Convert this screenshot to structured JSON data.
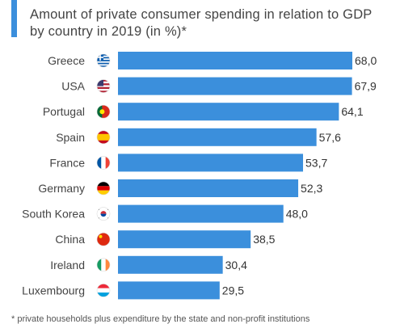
{
  "chart_data": {
    "type": "bar",
    "orientation": "horizontal",
    "title": "",
    "subtitle": "Amount of private consumer spending in relation to GDP by country in 2019 (in %)*",
    "categories": [
      "Greece",
      "USA",
      "Portugal",
      "Spain",
      "France",
      "Germany",
      "South Korea",
      "China",
      "Ireland",
      "Luxembourg"
    ],
    "values": [
      68.0,
      67.9,
      64.1,
      57.6,
      53.7,
      52.3,
      48.0,
      38.5,
      30.4,
      29.5
    ],
    "value_labels": [
      "68,0",
      "67,9",
      "64,1",
      "57,6",
      "53,7",
      "52,3",
      "48,0",
      "38,5",
      "30,4",
      "29,5"
    ],
    "flags": [
      "greece-flag",
      "usa-flag",
      "portugal-flag",
      "spain-flag",
      "france-flag",
      "germany-flag",
      "south-korea-flag",
      "china-flag",
      "ireland-flag",
      "luxembourg-flag"
    ],
    "xlim": [
      0,
      68.0
    ],
    "xlabel": "",
    "ylabel": "",
    "grid": false,
    "bar_color": "#3b8fdc",
    "footnote": "* private households plus expenditure by the state and non-profit institutions"
  }
}
